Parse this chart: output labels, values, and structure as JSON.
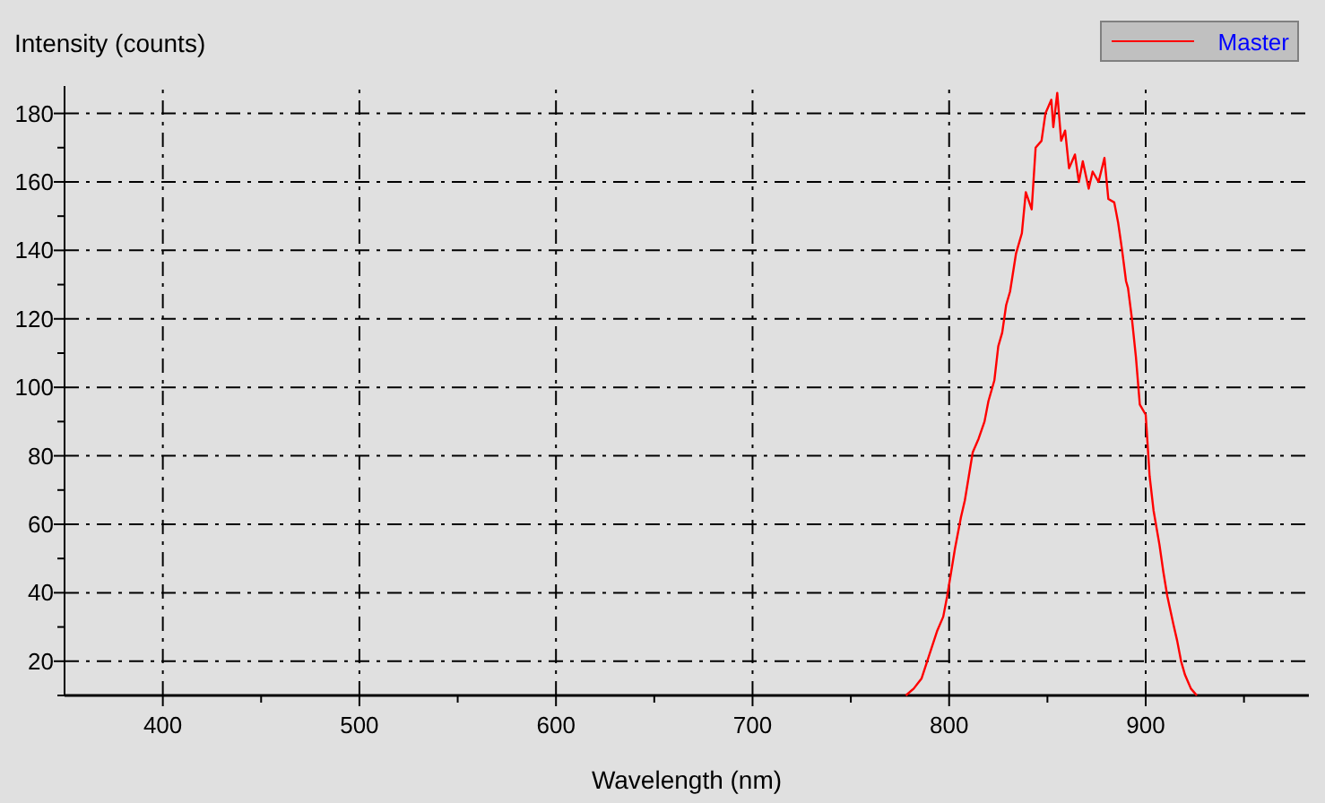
{
  "chart_data": {
    "type": "line",
    "xlabel": "Wavelength (nm)",
    "ylabel": "Intensity (counts)",
    "xlim": [
      350,
      983
    ],
    "ylim": [
      10,
      188
    ],
    "xticks": [
      400,
      {
        "value": 450,
        "label": null
      },
      500,
      {
        "value": 550,
        "label": null
      },
      600,
      {
        "value": 650,
        "label": null
      },
      700,
      {
        "value": 750,
        "label": null
      },
      800,
      {
        "value": 850,
        "label": null
      },
      900,
      {
        "value": 950,
        "label": null
      }
    ],
    "yticks": [
      {
        "value": 10,
        "label": null
      },
      20,
      {
        "value": 30,
        "label": null
      },
      40,
      {
        "value": 50,
        "label": null
      },
      60,
      {
        "value": 70,
        "label": null
      },
      80,
      {
        "value": 90,
        "label": null
      },
      100,
      {
        "value": 110,
        "label": null
      },
      120,
      {
        "value": 130,
        "label": null
      },
      140,
      {
        "value": 150,
        "label": null
      },
      160,
      {
        "value": 170,
        "label": null
      },
      180
    ],
    "grid": true,
    "legend": "top right",
    "line_style": "solid",
    "marker": "none",
    "series": [
      {
        "name": "Master",
        "color": "#ff0000",
        "x": [
          778,
          782,
          786,
          790,
          794,
          797,
          799,
          801,
          803,
          806,
          808,
          810,
          812,
          815,
          818,
          820,
          823,
          825,
          827,
          829,
          831,
          834,
          837,
          839,
          842,
          844,
          847,
          849,
          852,
          853,
          855,
          857,
          859,
          861,
          864,
          866,
          868,
          871,
          873,
          876,
          879,
          881,
          884,
          886,
          888,
          890,
          891,
          893,
          895,
          897,
          900,
          902,
          904,
          907,
          909,
          911,
          914,
          916,
          918,
          920,
          923,
          926
        ],
        "values": [
          10,
          12,
          15,
          22,
          29,
          33,
          39,
          46,
          53,
          62,
          67,
          74,
          81,
          85,
          90,
          96,
          102,
          112,
          116,
          124,
          128,
          139,
          145,
          157,
          152,
          170,
          172,
          180,
          184,
          176,
          186,
          172,
          175,
          164,
          168,
          160,
          166,
          158,
          163,
          160,
          167,
          155,
          154,
          148,
          140,
          131,
          129,
          120,
          109,
          95,
          92,
          74,
          64,
          54,
          46,
          39,
          31,
          26,
          20,
          16,
          12,
          10
        ]
      }
    ]
  }
}
